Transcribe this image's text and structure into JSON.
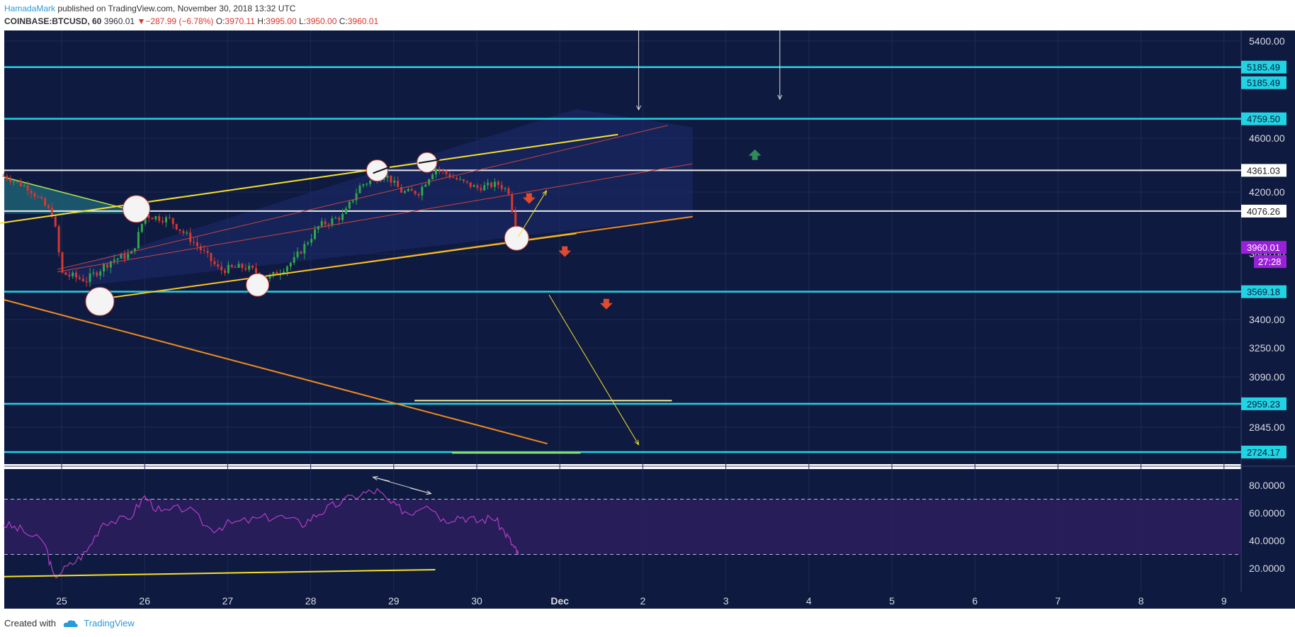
{
  "header": {
    "author": "HamadaMark",
    "published_text": "published on TradingView.com, November 30, 2018 13:32 UTC",
    "symbol": "COINBASE:BTCUSD, 60",
    "last": "3960.01",
    "down_arrow": "▼",
    "change": "−287.99 (−6.78%)",
    "open_label": "O:",
    "open": "3970.11",
    "high_label": "H:",
    "high": "3995.00",
    "low_label": "L:",
    "low": "3950.00",
    "close_label": "C:",
    "close": "3960.01"
  },
  "footer": {
    "created_with": "Created with",
    "brand": "TradingView",
    "icon": "tradingview-cloud-icon"
  },
  "colors": {
    "background": "#0f1a40",
    "grid": "#1f2a55",
    "cyan": "#21d4e3",
    "white_level": "#e8e8e8",
    "yellow": "#f5e02a",
    "orange": "#f08a1d",
    "up_candle": "#2ea84a",
    "down_candle": "#d8382e",
    "rsi": "#b43ec6",
    "last_price_badge": "#9b20d9",
    "red_arrow": "#e04a2e",
    "green_arrow": "#2e8b57"
  },
  "chart_data": [
    {
      "type": "candlestick",
      "title": "",
      "price_scale": [
        "5400.00",
        "4600.00",
        "4200.00",
        "3800.00",
        "3400.00",
        "3250.00",
        "3090.00",
        "2845.00"
      ],
      "time_labels": [
        "25",
        "26",
        "27",
        "28",
        "29",
        "30",
        "Dec",
        "2",
        "3",
        "4",
        "5",
        "6",
        "7",
        "8",
        "9"
      ],
      "horizontal_levels": [
        {
          "value": 5185.49,
          "label": "5185.49",
          "style": "cyan"
        },
        {
          "value": 4759.5,
          "label": "4759.50",
          "style": "cyan"
        },
        {
          "value": 4361.03,
          "label": "4361.03",
          "style": "white"
        },
        {
          "value": 4076.26,
          "label": "4076.26",
          "style": "white"
        },
        {
          "value": 3569.18,
          "label": "3569.18",
          "style": "cyan"
        },
        {
          "value": 2959.23,
          "label": "2959.23",
          "style": "cyan"
        },
        {
          "value": 2724.17,
          "label": "2724.17",
          "style": "cyan"
        }
      ],
      "extra_axis_label": "5185.49",
      "last_price": {
        "value": 3960.01,
        "label": "3960.01"
      },
      "countdown": "27:28",
      "price_path_approx": [
        {
          "day": 24.3,
          "price": 4320
        },
        {
          "day": 24.6,
          "price": 4230
        },
        {
          "day": 24.9,
          "price": 4050
        },
        {
          "day": 25.0,
          "price": 3680
        },
        {
          "day": 25.3,
          "price": 3640
        },
        {
          "day": 25.6,
          "price": 3760
        },
        {
          "day": 25.85,
          "price": 3800
        },
        {
          "day": 26.0,
          "price": 4050
        },
        {
          "day": 26.3,
          "price": 4020
        },
        {
          "day": 26.6,
          "price": 3870
        },
        {
          "day": 26.9,
          "price": 3700
        },
        {
          "day": 27.2,
          "price": 3720
        },
        {
          "day": 27.5,
          "price": 3650
        },
        {
          "day": 27.8,
          "price": 3760
        },
        {
          "day": 28.1,
          "price": 3980
        },
        {
          "day": 28.4,
          "price": 4050
        },
        {
          "day": 28.6,
          "price": 4250
        },
        {
          "day": 28.9,
          "price": 4330
        },
        {
          "day": 29.1,
          "price": 4200
        },
        {
          "day": 29.3,
          "price": 4200
        },
        {
          "day": 29.5,
          "price": 4380
        },
        {
          "day": 29.8,
          "price": 4280
        },
        {
          "day": 30.0,
          "price": 4230
        },
        {
          "day": 30.25,
          "price": 4260
        },
        {
          "day": 30.4,
          "price": 4200
        },
        {
          "day": 30.45,
          "price": 3980
        },
        {
          "day": 30.5,
          "price": 3960
        }
      ]
    },
    {
      "type": "line",
      "title": "",
      "y_scale": [
        "80.0000",
        "60.0000",
        "40.0000",
        "20.0000"
      ],
      "bands": [
        70,
        30
      ],
      "series": [
        {
          "x": [
            24.3,
            24.5,
            24.8,
            24.9,
            25.1,
            25.3,
            25.5,
            25.8,
            26.0,
            26.2,
            26.5,
            26.8,
            27.0,
            27.3,
            27.6,
            27.9,
            28.1,
            28.3,
            28.6,
            28.8,
            29.0,
            29.2,
            29.4,
            29.6,
            29.8,
            30.0,
            30.2,
            30.35,
            30.45,
            30.5
          ],
          "y": [
            52,
            48,
            38,
            14,
            22,
            32,
            54,
            55,
            72,
            60,
            64,
            48,
            52,
            55,
            58,
            52,
            60,
            66,
            74,
            76,
            65,
            60,
            68,
            55,
            58,
            54,
            57,
            45,
            35,
            30
          ]
        }
      ]
    }
  ]
}
